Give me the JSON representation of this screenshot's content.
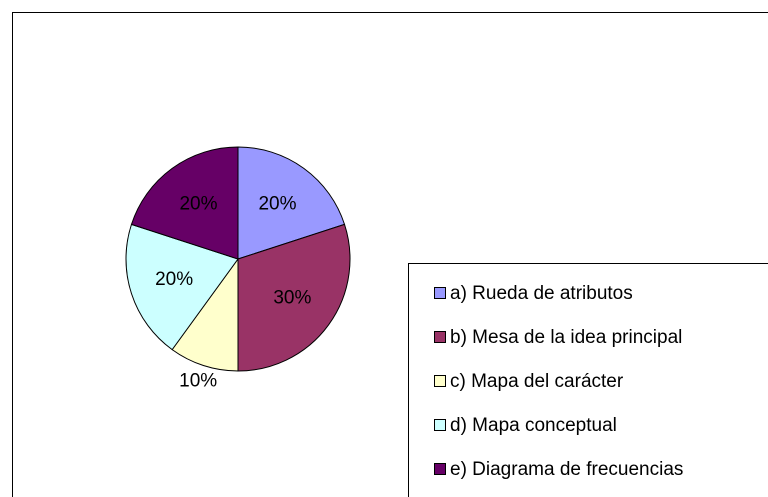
{
  "chart_data": {
    "type": "pie",
    "categories": [
      "a) Rueda de atributos",
      "b) Mesa de la idea principal",
      "c) Mapa del carácter",
      "d) Mapa conceptual",
      "e) Diagrama de frecuencias"
    ],
    "values": [
      20,
      30,
      10,
      20,
      20
    ],
    "value_labels": [
      "20%",
      "30%",
      "10%",
      "20%",
      "20%"
    ],
    "colors": [
      "#9999ff",
      "#993366",
      "#ffffcc",
      "#ccffff",
      "#660066"
    ]
  }
}
